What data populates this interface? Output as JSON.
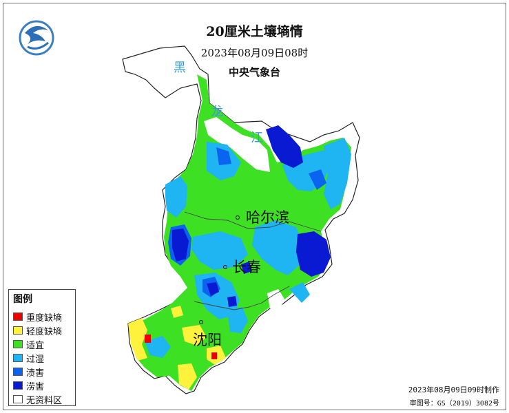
{
  "title": "20厘米土壤墒情",
  "subtitle": "2023年08月09日08时",
  "agency": "中央气象台",
  "colors": {
    "severe_drought": "#ee0000",
    "light_drought": "#fff23c",
    "suitable": "#3ee024",
    "over_wet": "#1fb4f2",
    "waterlogging": "#0a64f0",
    "flood": "#0a1ad2",
    "no_data": "#ffffff",
    "region_label": "#3b9bd3"
  },
  "map": {
    "region_labels": [
      "黑",
      "龙",
      "江"
    ],
    "cities": [
      {
        "name": "哈尔滨"
      },
      {
        "name": "长春"
      },
      {
        "name": "沈阳"
      }
    ]
  },
  "legend": {
    "title": "图例",
    "items": [
      {
        "label": "重度缺墒",
        "color": "#ee0000"
      },
      {
        "label": "轻度缺墒",
        "color": "#fff23c"
      },
      {
        "label": "适宜",
        "color": "#3ee024"
      },
      {
        "label": "过湿",
        "color": "#1fb4f2"
      },
      {
        "label": "渍害",
        "color": "#0a64f0"
      },
      {
        "label": "涝害",
        "color": "#0a1ad2"
      },
      {
        "label": "无资料区",
        "color": "#ffffff"
      }
    ]
  },
  "footer": {
    "made": "2023年08月09日09时制作",
    "approval": "审图号：GS（2019）3082号"
  },
  "logo_icon": "cma-logo-icon"
}
